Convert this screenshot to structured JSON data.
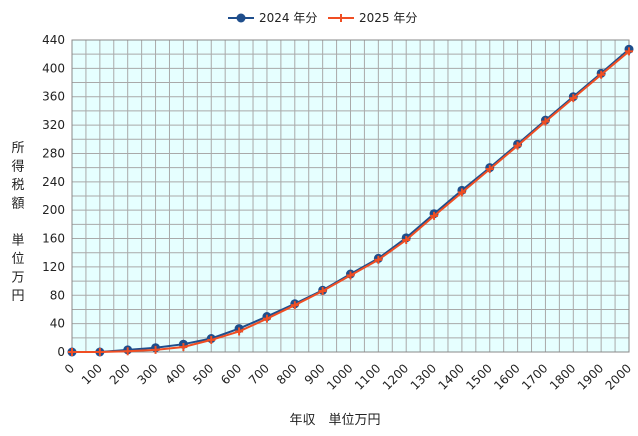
{
  "chart_data": {
    "type": "line",
    "title": "",
    "xlabel": "年収　単位万円",
    "ylabel": "所得税額　単位万円",
    "ylabel_lines": [
      "所",
      "得",
      "税",
      "額",
      "",
      "単",
      "位",
      "万",
      "円"
    ],
    "xlim": [
      0,
      2000
    ],
    "ylim": [
      0,
      440
    ],
    "xticks": [
      0,
      100,
      200,
      300,
      400,
      500,
      600,
      700,
      800,
      900,
      1000,
      1100,
      1200,
      1300,
      1400,
      1500,
      1600,
      1700,
      1800,
      1900,
      2000
    ],
    "yticks": [
      0,
      40,
      80,
      120,
      160,
      200,
      240,
      280,
      320,
      360,
      400,
      440
    ],
    "grid": true,
    "legend_position": "top-center",
    "x": [
      0,
      100,
      200,
      300,
      400,
      500,
      600,
      700,
      800,
      900,
      1000,
      1100,
      1200,
      1300,
      1400,
      1500,
      1600,
      1700,
      1800,
      1900,
      2000
    ],
    "series": [
      {
        "name": "2024 年分",
        "color": "#1f4e8c",
        "marker": "circle",
        "values": [
          0,
          0,
          3,
          6,
          11,
          19,
          33,
          50,
          68,
          87,
          110,
          132,
          161,
          195,
          228,
          260,
          293,
          327,
          360,
          393,
          427
        ]
      },
      {
        "name": "2025 年分",
        "color": "#f04e23",
        "marker": "plus",
        "values": [
          0,
          0,
          1,
          3,
          7,
          17,
          29,
          47,
          66,
          86,
          108,
          130,
          158,
          192,
          225,
          258,
          291,
          325,
          358,
          391,
          424
        ]
      }
    ],
    "plot_background": "#e6ffff",
    "grid_color": "#a9a9a9"
  }
}
